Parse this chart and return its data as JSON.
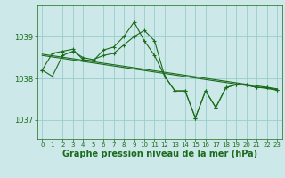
{
  "background_color": "#cce8e8",
  "grid_color": "#99cccc",
  "line_color": "#1a6b1a",
  "xlabel": "Graphe pression niveau de la mer (hPa)",
  "xlabel_fontsize": 7,
  "ylim": [
    1036.55,
    1039.75
  ],
  "xlim": [
    -0.5,
    23.5
  ],
  "yticks": [
    1037,
    1038,
    1039
  ],
  "xticks": [
    0,
    1,
    2,
    3,
    4,
    5,
    6,
    7,
    8,
    9,
    10,
    11,
    12,
    13,
    14,
    15,
    16,
    17,
    18,
    19,
    20,
    21,
    22,
    23
  ],
  "tick_fontsize": 5,
  "series_main": [
    1038.2,
    1038.05,
    1038.55,
    1038.65,
    1038.5,
    1038.45,
    1038.55,
    1038.6,
    1038.8,
    1039.0,
    1039.15,
    1038.9,
    1038.05,
    1037.7,
    1037.7,
    1037.05,
    1037.7,
    1037.3,
    1037.78,
    1037.85,
    1037.85,
    1037.78,
    1037.78,
    1037.72
  ],
  "series_alt": [
    1038.2,
    1038.6,
    1038.65,
    1038.7,
    1038.45,
    1038.42,
    1038.68,
    1038.75,
    1039.0,
    1039.35,
    1038.9,
    1038.55,
    1038.05,
    1037.7,
    1037.7,
    1037.05,
    1037.7,
    1037.3,
    1037.78,
    1037.85,
    1037.85,
    1037.78,
    1037.78,
    1037.72
  ],
  "trend1_x": [
    0,
    23
  ],
  "trend1_y": [
    1038.55,
    1037.72
  ],
  "trend2_x": [
    0,
    23
  ],
  "trend2_y": [
    1038.58,
    1037.75
  ]
}
